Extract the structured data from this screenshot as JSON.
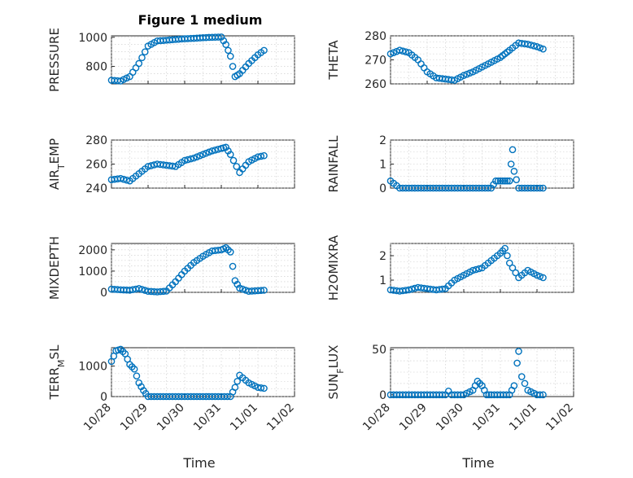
{
  "figure": {
    "title": "Figure 1 medium",
    "xlabel": "Time",
    "date_ticks": [
      "10/28",
      "10/29",
      "10/30",
      "10/31",
      "11/01",
      "11/02"
    ],
    "marker_color": "#0072bd"
  },
  "chart_data": [
    {
      "type": "scatter",
      "ylabel": "PRESSURE",
      "yticks": [
        "800",
        "1000"
      ],
      "ytick_values": [
        800,
        1000
      ],
      "ylim": [
        680,
        1010
      ],
      "xlim": [
        "10/28",
        "11/02"
      ],
      "x": [
        "10/28 00:00",
        "10/28 06:00",
        "10/28 12:00",
        "10/28 18:00",
        "10/29 00:00",
        "10/29 06:00",
        "10/29 12:00",
        "10/29 18:00",
        "10/30 00:00",
        "10/30 06:00",
        "10/30 12:00",
        "10/30 18:00",
        "10/31 00:00",
        "10/31 03:00",
        "10/31 06:00",
        "10/31 09:00",
        "10/31 12:00",
        "10/31 18:00",
        "11/01 00:00",
        "11/01 04:00"
      ],
      "y": [
        705,
        700,
        730,
        820,
        940,
        975,
        980,
        985,
        990,
        993,
        997,
        1000,
        1002,
        950,
        870,
        730,
        750,
        820,
        880,
        910
      ]
    },
    {
      "type": "scatter",
      "ylabel": "THETA",
      "yticks": [
        "260",
        "270",
        "280"
      ],
      "ytick_values": [
        260,
        270,
        280
      ],
      "ylim": [
        260,
        280
      ],
      "xlim": [
        "10/28",
        "11/02"
      ],
      "x": [
        "10/28 00:00",
        "10/28 06:00",
        "10/28 12:00",
        "10/28 18:00",
        "10/29 00:00",
        "10/29 06:00",
        "10/29 12:00",
        "10/29 18:00",
        "10/30 00:00",
        "10/30 06:00",
        "10/30 12:00",
        "10/30 18:00",
        "10/31 00:00",
        "10/31 03:00",
        "10/31 06:00",
        "10/31 12:00",
        "10/31 18:00",
        "11/01 00:00",
        "11/01 04:00"
      ],
      "y": [
        272.5,
        274,
        273,
        270,
        265,
        262.5,
        262,
        261.5,
        263.5,
        265,
        267,
        269,
        271,
        272.5,
        274,
        277,
        276.5,
        275.5,
        274.5
      ]
    },
    {
      "type": "scatter",
      "ylabel": "AIR_TEMP",
      "yticks": [
        "240",
        "260",
        "280"
      ],
      "ytick_values": [
        240,
        260,
        280
      ],
      "ylim": [
        240,
        280
      ],
      "xlim": [
        "10/28",
        "11/02"
      ],
      "x": [
        "10/28 00:00",
        "10/28 06:00",
        "10/28 12:00",
        "10/28 18:00",
        "10/29 00:00",
        "10/29 06:00",
        "10/29 12:00",
        "10/29 18:00",
        "10/30 00:00",
        "10/30 06:00",
        "10/30 12:00",
        "10/30 18:00",
        "10/31 00:00",
        "10/31 03:00",
        "10/31 06:00",
        "10/31 12:00",
        "10/31 18:00",
        "11/01 00:00",
        "11/01 04:00"
      ],
      "y": [
        247,
        248,
        246,
        252,
        258,
        260,
        259,
        258,
        263,
        265,
        268,
        271,
        273,
        274,
        268,
        253,
        262,
        266,
        267
      ]
    },
    {
      "type": "scatter",
      "ylabel": "RAINFALL",
      "yticks": [
        "0",
        "1",
        "2"
      ],
      "ytick_values": [
        0,
        1,
        2
      ],
      "ylim": [
        0,
        2
      ],
      "xlim": [
        "10/28",
        "11/02"
      ],
      "x": [
        "10/28 00:00",
        "10/28 06:00",
        "10/28 12:00",
        "10/28 18:00",
        "10/29 00:00",
        "10/29 12:00",
        "10/30 00:00",
        "10/30 12:00",
        "10/30 18:00",
        "10/30 21:00",
        "10/31 00:00",
        "10/31 03:00",
        "10/31 06:00",
        "10/31 07:00",
        "10/31 08:00",
        "10/31 09:00",
        "10/31 12:00",
        "10/31 18:00",
        "11/01 00:00",
        "11/01 04:00"
      ],
      "y": [
        0.3,
        0,
        0,
        0,
        0,
        0,
        0,
        0,
        0,
        0.3,
        0.3,
        0.3,
        0.3,
        1.0,
        1.6,
        0.7,
        0,
        0,
        0,
        0
      ]
    },
    {
      "type": "scatter",
      "ylabel": "MIXDEPTH",
      "yticks": [
        "0",
        "1000",
        "2000"
      ],
      "ytick_values": [
        0,
        1000,
        2000
      ],
      "ylim": [
        0,
        2300
      ],
      "xlim": [
        "10/28",
        "11/02"
      ],
      "x": [
        "10/28 00:00",
        "10/28 06:00",
        "10/28 12:00",
        "10/28 18:00",
        "10/29 00:00",
        "10/29 06:00",
        "10/29 12:00",
        "10/29 18:00",
        "10/30 00:00",
        "10/30 06:00",
        "10/30 12:00",
        "10/30 18:00",
        "10/31 00:00",
        "10/31 03:00",
        "10/31 06:00",
        "10/31 09:00",
        "10/31 12:00",
        "10/31 18:00",
        "11/01 00:00",
        "11/01 04:00"
      ],
      "y": [
        150,
        120,
        100,
        180,
        50,
        20,
        60,
        500,
        1000,
        1400,
        1700,
        1950,
        2000,
        2100,
        1900,
        550,
        200,
        50,
        80,
        100
      ]
    },
    {
      "type": "scatter",
      "ylabel": "H2OMIXRA",
      "yticks": [
        "1",
        "2"
      ],
      "ytick_values": [
        1,
        2
      ],
      "ylim": [
        0.5,
        2.5
      ],
      "xlim": [
        "10/28",
        "11/02"
      ],
      "x": [
        "10/28 00:00",
        "10/28 06:00",
        "10/28 12:00",
        "10/28 18:00",
        "10/29 00:00",
        "10/29 06:00",
        "10/29 12:00",
        "10/29 18:00",
        "10/30 00:00",
        "10/30 06:00",
        "10/30 12:00",
        "10/30 18:00",
        "10/31 00:00",
        "10/31 03:00",
        "10/31 06:00",
        "10/31 12:00",
        "10/31 18:00",
        "11/01 00:00",
        "11/01 04:00"
      ],
      "y": [
        0.6,
        0.55,
        0.6,
        0.7,
        0.65,
        0.6,
        0.65,
        1.0,
        1.2,
        1.4,
        1.5,
        1.8,
        2.1,
        2.3,
        1.7,
        1.1,
        1.4,
        1.2,
        1.1
      ]
    },
    {
      "type": "scatter",
      "ylabel": "TERR_MSL",
      "yticks": [
        "0",
        "1000"
      ],
      "ytick_values": [
        0,
        1000
      ],
      "ylim": [
        0,
        1600
      ],
      "xlim": [
        "10/28",
        "11/02"
      ],
      "x": [
        "10/28 00:00",
        "10/28 03:00",
        "10/28 06:00",
        "10/28 09:00",
        "10/28 12:00",
        "10/28 15:00",
        "10/28 18:00",
        "10/28 21:00",
        "10/29 00:00",
        "10/29 06:00",
        "10/29 12:00",
        "10/30 00:00",
        "10/30 12:00",
        "10/31 00:00",
        "10/31 06:00",
        "10/31 09:00",
        "10/31 12:00",
        "10/31 18:00",
        "11/01 00:00",
        "11/01 04:00"
      ],
      "y": [
        1150,
        1500,
        1550,
        1400,
        1050,
        900,
        450,
        200,
        0,
        0,
        0,
        0,
        0,
        0,
        0,
        300,
        700,
        450,
        300,
        270
      ]
    },
    {
      "type": "scatter",
      "ylabel": "SUN_FLUX",
      "yticks": [
        "0",
        "50"
      ],
      "ytick_values": [
        0,
        50
      ],
      "ylim": [
        -2,
        52
      ],
      "xlim": [
        "10/28",
        "11/02"
      ],
      "x": [
        "10/28 00:00",
        "10/28 12:00",
        "10/29 00:00",
        "10/29 12:00",
        "10/29 14:00",
        "10/29 16:00",
        "10/30 00:00",
        "10/30 06:00",
        "10/30 09:00",
        "10/30 12:00",
        "10/30 15:00",
        "10/30 18:00",
        "10/31 00:00",
        "10/31 06:00",
        "10/31 09:00",
        "10/31 11:00",
        "10/31 12:00",
        "10/31 14:00",
        "10/31 18:00",
        "11/01 00:00",
        "11/01 04:00"
      ],
      "y": [
        0,
        0,
        0,
        0,
        4,
        0,
        0,
        5,
        15,
        10,
        0,
        0,
        0,
        0,
        10,
        35,
        48,
        20,
        5,
        0,
        0
      ]
    }
  ]
}
